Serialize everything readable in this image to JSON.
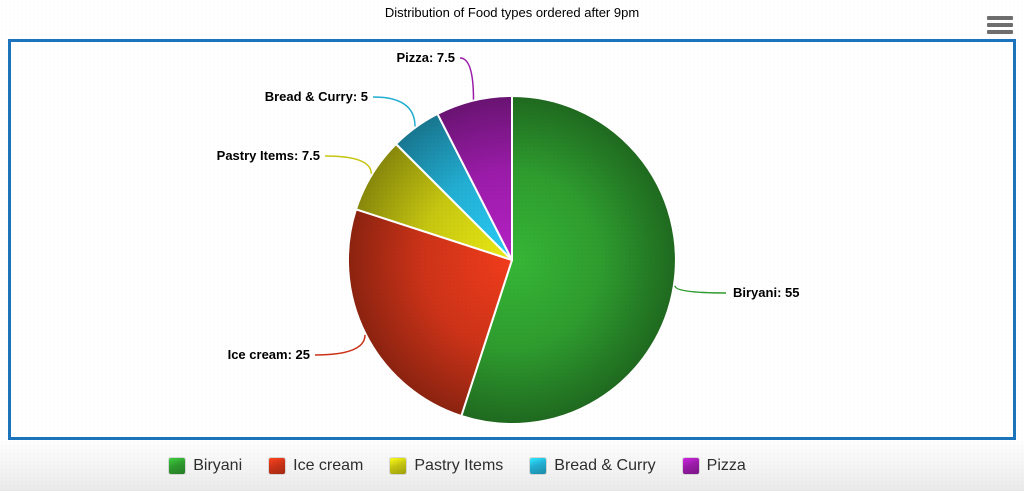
{
  "header": {
    "title": "Distribution of Food types ordered after 9pm"
  },
  "chart_data": {
    "type": "pie",
    "title": "Distribution of Food types ordered after 9pm",
    "categories": [
      "Biryani",
      "Ice cream",
      "Pastry Items",
      "Bread & Curry",
      "Pizza"
    ],
    "values": [
      55,
      25,
      7.5,
      5,
      7.5
    ],
    "slice_labels": [
      "Biryani: 55",
      "Ice cream: 25",
      "Pastry Items: 7.5",
      "Bread & Curry: 5",
      "Pizza: 7.5"
    ],
    "colors": [
      "#2e9b2e",
      "#cc3318",
      "#c6c611",
      "#23aed2",
      "#9a1ca8"
    ],
    "start_angle_deg": 0,
    "direction": "clockwise",
    "legend_position": "bottom",
    "legend": [
      "Biryani",
      "Ice cream",
      "Pastry Items",
      "Bread & Curry",
      "Pizza"
    ]
  },
  "style": {
    "panel_border_color": "#1c75bc",
    "menu_icon_color": "#6e6e6e",
    "slice_label_color": "#000000",
    "legend_text_color": "#2e2e2e"
  }
}
